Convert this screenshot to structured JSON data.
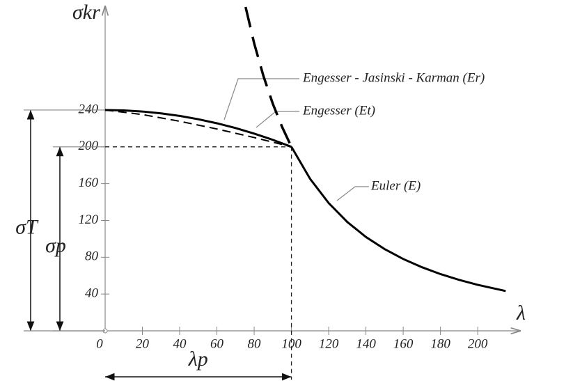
{
  "chart_data": {
    "type": "line",
    "y_label": "σkr",
    "x_label": "λ",
    "xlim": [
      0,
      222
    ],
    "ylim": [
      0,
      352
    ],
    "xticks": [
      0,
      20,
      40,
      60,
      80,
      100,
      120,
      140,
      160,
      180,
      200
    ],
    "yticks": [
      40,
      80,
      120,
      160,
      200,
      240
    ],
    "series": [
      {
        "name": "Engesser - Jasinski - Karman (Er)",
        "color": "#000000",
        "style": "solid",
        "width": 3,
        "x": [
          0,
          10,
          20,
          30,
          40,
          50,
          60,
          70,
          80,
          90,
          100
        ],
        "values": [
          240,
          239.6,
          238.4,
          236.4,
          233.6,
          230,
          225.6,
          220.4,
          214.4,
          207.6,
          200
        ]
      },
      {
        "name": "Engesser (Et)",
        "color": "#000000",
        "style": "dashed",
        "width": 2,
        "x": [
          0,
          20,
          40,
          60,
          80,
          100
        ],
        "values": [
          240,
          235.1,
          227.8,
          219.4,
          210.1,
          200
        ]
      },
      {
        "name": "Euler (E)",
        "color": "#000000",
        "style": "solid",
        "width": 3,
        "x": [
          100,
          110,
          120,
          130,
          140,
          150,
          160,
          170,
          180,
          190,
          200,
          215
        ],
        "values": [
          200,
          165.3,
          138.9,
          118.3,
          102,
          88.9,
          78.1,
          69.2,
          61.7,
          55.4,
          50,
          43.3
        ]
      },
      {
        "color": "#000000",
        "style": "longdash",
        "width": 3.5,
        "x": [
          75.4,
          80,
          85,
          90,
          95,
          100
        ],
        "values": [
          352,
          312.5,
          276.8,
          246.9,
          221.6,
          200
        ]
      }
    ],
    "dimensions": [
      {
        "label": "σT",
        "axis": "y",
        "from": 0,
        "to": 240
      },
      {
        "label": "σp",
        "axis": "y",
        "from": 0,
        "to": 200
      },
      {
        "label": "λp",
        "axis": "x",
        "from": 0,
        "to": 100
      }
    ]
  }
}
